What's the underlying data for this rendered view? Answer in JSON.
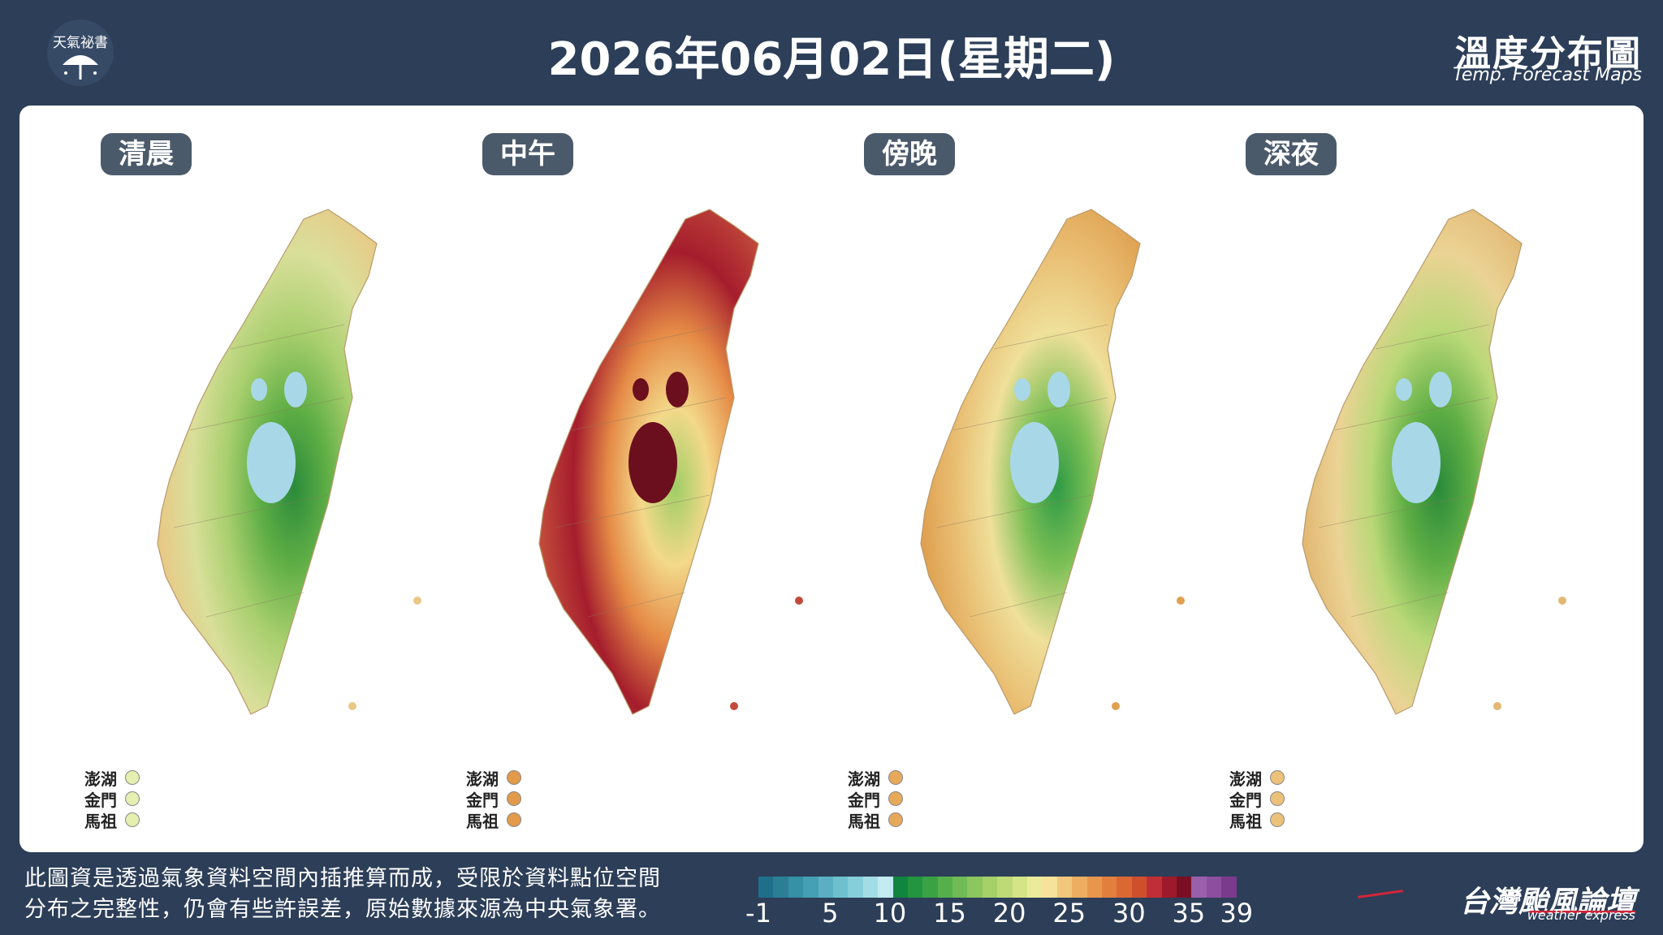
{
  "header": {
    "logo_text": "天氣祕書",
    "date_title": "2026年06月02日(星期二)",
    "brand_zh": "溫度分布圖",
    "brand_en": "Temp. Forecast Maps"
  },
  "maps": [
    {
      "label": "清晨",
      "palette": [
        "#e9c886",
        "#d9df9a",
        "#a9cf6e",
        "#5fae45",
        "#2a8a3a"
      ],
      "lake": "#a8d8e8",
      "island_color": "#e4efb0"
    },
    {
      "label": "中午",
      "palette": [
        "#c24b3b",
        "#a51d2d",
        "#e58a46",
        "#f3d98a",
        "#9fcd66"
      ],
      "lake": "#6b0f1e",
      "island_color": "#e39a4b"
    },
    {
      "label": "傍晚",
      "palette": [
        "#dfa050",
        "#e9be73",
        "#efe09a",
        "#7bbf55",
        "#2e9a45"
      ],
      "lake": "#a8d8e8",
      "island_color": "#e6a95a"
    },
    {
      "label": "深夜",
      "palette": [
        "#e2b873",
        "#ebd395",
        "#b9d877",
        "#5fae45",
        "#2a8a3a"
      ],
      "lake": "#a8d8e8",
      "island_color": "#ecc279"
    }
  ],
  "island_legend": {
    "labels": [
      "澎湖",
      "金門",
      "馬祖"
    ]
  },
  "disclaimer": {
    "line1": "此圖資是透過氣象資料空間內插推算而成，受限於資料點位空間",
    "line2": "分布之完整性，仍會有些許誤差，原始數據來源為中央氣象署。"
  },
  "colorbar": {
    "colors": [
      "#1f6f8a",
      "#2a7f97",
      "#3690a6",
      "#46a0b3",
      "#5ab0c2",
      "#6ec0cf",
      "#86cfda",
      "#a2dde6",
      "#c3ebf1",
      "#11843f",
      "#23943f",
      "#3aa244",
      "#55b04c",
      "#70bb55",
      "#8bc65f",
      "#a5d06a",
      "#bdda77",
      "#d4e486",
      "#ebec99",
      "#f6e29a",
      "#f1c77c",
      "#eeae62",
      "#e9964d",
      "#e37f3d",
      "#db6833",
      "#cf4f2d",
      "#c02f35",
      "#9c1a2b",
      "#7a0f24",
      "#9a5fab",
      "#8c4e9f",
      "#7a3b8d"
    ],
    "ticks": [
      "-1",
      "5",
      "10",
      "15",
      "20",
      "25",
      "30",
      "35",
      "39"
    ]
  },
  "footer": {
    "brand": "台灣颱風論壇",
    "sub": "weather express"
  }
}
